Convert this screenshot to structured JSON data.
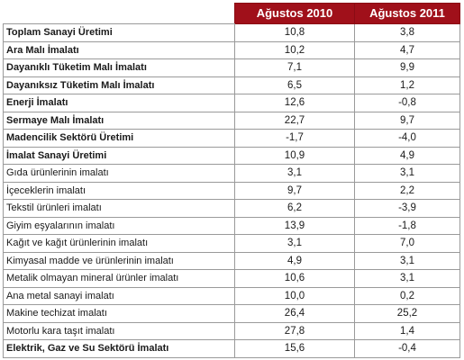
{
  "header": {
    "col1": "",
    "col2": "Ağustos 2010",
    "col3": "Ağustos 2011"
  },
  "rows": [
    {
      "label": "Toplam Sanayi Üretimi",
      "v2010": "10,8",
      "v2011": "3,8",
      "bold": true
    },
    {
      "label": "Ara Malı İmalatı",
      "v2010": "10,2",
      "v2011": "4,7",
      "bold": true
    },
    {
      "label": "Dayanıklı Tüketim Malı İmalatı",
      "v2010": "7,1",
      "v2011": "9,9",
      "bold": true
    },
    {
      "label": "Dayanıksız Tüketim Malı İmalatı",
      "v2010": "6,5",
      "v2011": "1,2",
      "bold": true
    },
    {
      "label": "Enerji İmalatı",
      "v2010": "12,6",
      "v2011": "-0,8",
      "bold": true
    },
    {
      "label": "Sermaye Malı İmalatı",
      "v2010": "22,7",
      "v2011": "9,7",
      "bold": true
    },
    {
      "label": "Madencilik Sektörü Üretimi",
      "v2010": "-1,7",
      "v2011": "-4,0",
      "bold": true
    },
    {
      "label": "İmalat Sanayi Üretimi",
      "v2010": "10,9",
      "v2011": "4,9",
      "bold": true
    },
    {
      "label": "Gıda ürünlerinin imalatı",
      "v2010": "3,1",
      "v2011": "3,1",
      "bold": false
    },
    {
      "label": "İçeceklerin imalatı",
      "v2010": "9,7",
      "v2011": "2,2",
      "bold": false
    },
    {
      "label": "Tekstil ürünleri imalatı",
      "v2010": "6,2",
      "v2011": "-3,9",
      "bold": false
    },
    {
      "label": "Giyim eşyalarının imalatı",
      "v2010": "13,9",
      "v2011": "-1,8",
      "bold": false
    },
    {
      "label": "Kağıt ve kağıt ürünlerinin imalatı",
      "v2010": "3,1",
      "v2011": "7,0",
      "bold": false
    },
    {
      "label": "Kimyasal madde ve ürünlerinin imalatı",
      "v2010": "4,9",
      "v2011": "3,1",
      "bold": false
    },
    {
      "label": "Metalik olmayan mineral ürünler imalatı",
      "v2010": "10,6",
      "v2011": "3,1",
      "bold": false
    },
    {
      "label": "Ana metal sanayi imalatı",
      "v2010": "10,0",
      "v2011": "0,2",
      "bold": false
    },
    {
      "label": "Makine techizat imalatı",
      "v2010": "26,4",
      "v2011": "25,2",
      "bold": false
    },
    {
      "label": "Motorlu kara taşıt imalatı",
      "v2010": "27,8",
      "v2011": "1,4",
      "bold": false
    },
    {
      "label": "Elektrik, Gaz ve Su Sektörü İmalatı",
      "v2010": "15,6",
      "v2011": "-0,4",
      "bold": true
    }
  ],
  "colors": {
    "header_bg": "#a0101a",
    "header_text": "#ffffff",
    "border": "#9a9a9a"
  }
}
